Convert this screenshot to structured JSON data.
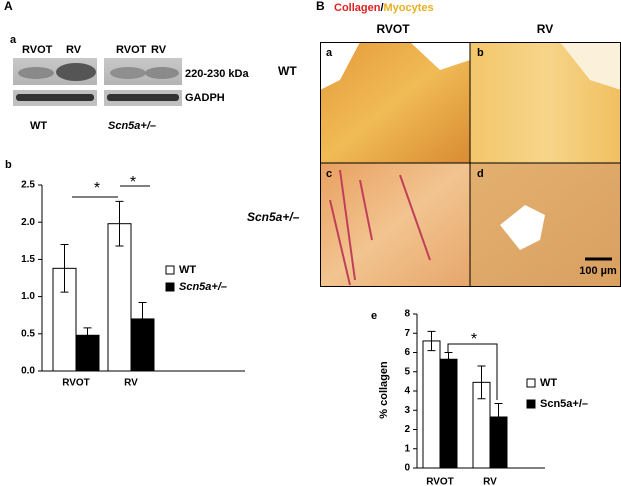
{
  "panel_labels": [
    "A",
    "B"
  ],
  "blot": {
    "label": "a",
    "lanes": [
      "RVOT",
      "RV",
      "RVOT",
      "RV"
    ],
    "bands": [
      "220-230 kDa",
      "GADPH"
    ],
    "groups": [
      "WT",
      "Scn5a+/–"
    ]
  },
  "histology": {
    "title_parts": [
      "Collagen",
      "/",
      "Myocytes"
    ],
    "columns": [
      "RVOT",
      "RV"
    ],
    "rows": [
      "WT",
      "Scn5a+/–"
    ],
    "panels": [
      "a",
      "b",
      "c",
      "d"
    ],
    "scale_bar": "100 µm"
  },
  "chart_data": [
    {
      "type": "bar",
      "label": "b",
      "categories": [
        "RVOT",
        "RV"
      ],
      "series": [
        {
          "name": "WT",
          "color": "#ffffff",
          "values": [
            1.38,
            1.98
          ],
          "errors": [
            0.32,
            0.3
          ]
        },
        {
          "name": "Scn5a+/–",
          "color": "#000000",
          "values": [
            0.48,
            0.7
          ],
          "errors": [
            0.1,
            0.22
          ]
        }
      ],
      "ylim": [
        0,
        2.5
      ],
      "yticks": [
        {
          "value": 0,
          "label": "0.0"
        },
        0.5,
        {
          "value": 1,
          "label": "1.0"
        },
        1.5,
        {
          "value": 2,
          "label": "2.0"
        },
        2.5
      ],
      "annotations": [
        "*",
        "*"
      ]
    },
    {
      "type": "bar",
      "label": "e",
      "ylabel": "% collagen",
      "categories": [
        "RVOT",
        "RV"
      ],
      "series": [
        {
          "name": "WT",
          "color": "#ffffff",
          "values": [
            6.6,
            4.45
          ],
          "errors": [
            0.5,
            0.85
          ]
        },
        {
          "name": "Scn5a+/–",
          "color": "#000000",
          "values": [
            5.65,
            2.65
          ],
          "errors": [
            0.35,
            0.7
          ]
        }
      ],
      "ylim": [
        0,
        8
      ],
      "yticks": [
        0,
        1,
        2,
        3,
        4,
        5,
        6,
        7,
        8
      ],
      "annotations": [
        "*"
      ]
    }
  ]
}
